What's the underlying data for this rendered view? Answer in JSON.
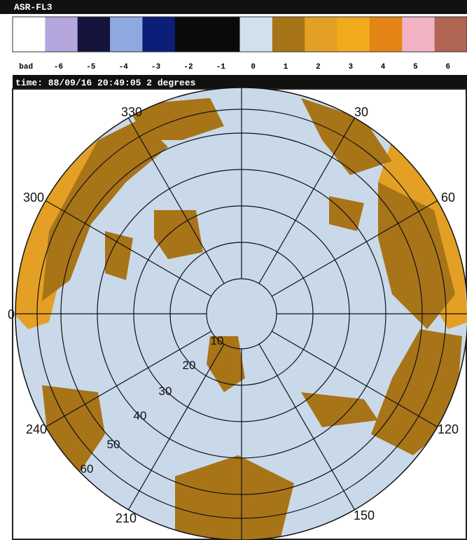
{
  "header": {
    "title": "ASR-FL3"
  },
  "legend": [
    {
      "label": "bad",
      "color": "#ffffff"
    },
    {
      "label": "-6",
      "color": "#b4a6dc"
    },
    {
      "label": "-5",
      "color": "#14143c"
    },
    {
      "label": "-4",
      "color": "#8ea8e0"
    },
    {
      "label": "-3",
      "color": "#0c1e78"
    },
    {
      "label": "-2",
      "color": "#0a0a0a"
    },
    {
      "label": "-1",
      "color": "#0a0a0a"
    },
    {
      "label": "0",
      "color": "#d2e0ee"
    },
    {
      "label": "1",
      "color": "#a87418"
    },
    {
      "label": "2",
      "color": "#e4a024"
    },
    {
      "label": "3",
      "color": "#f0aa1c"
    },
    {
      "label": "4",
      "color": "#e48414"
    },
    {
      "label": "5",
      "color": "#f2b4c4"
    },
    {
      "label": "6",
      "color": "#b06652"
    }
  ],
  "status": "time: 88/09/16 20:49:05 2 degrees",
  "azimuth_labels": [
    "330",
    "30",
    "300",
    "60",
    "0",
    "240",
    "120",
    "210",
    "150"
  ],
  "range_labels": [
    "10",
    "20",
    "30",
    "40",
    "50",
    "60"
  ]
}
